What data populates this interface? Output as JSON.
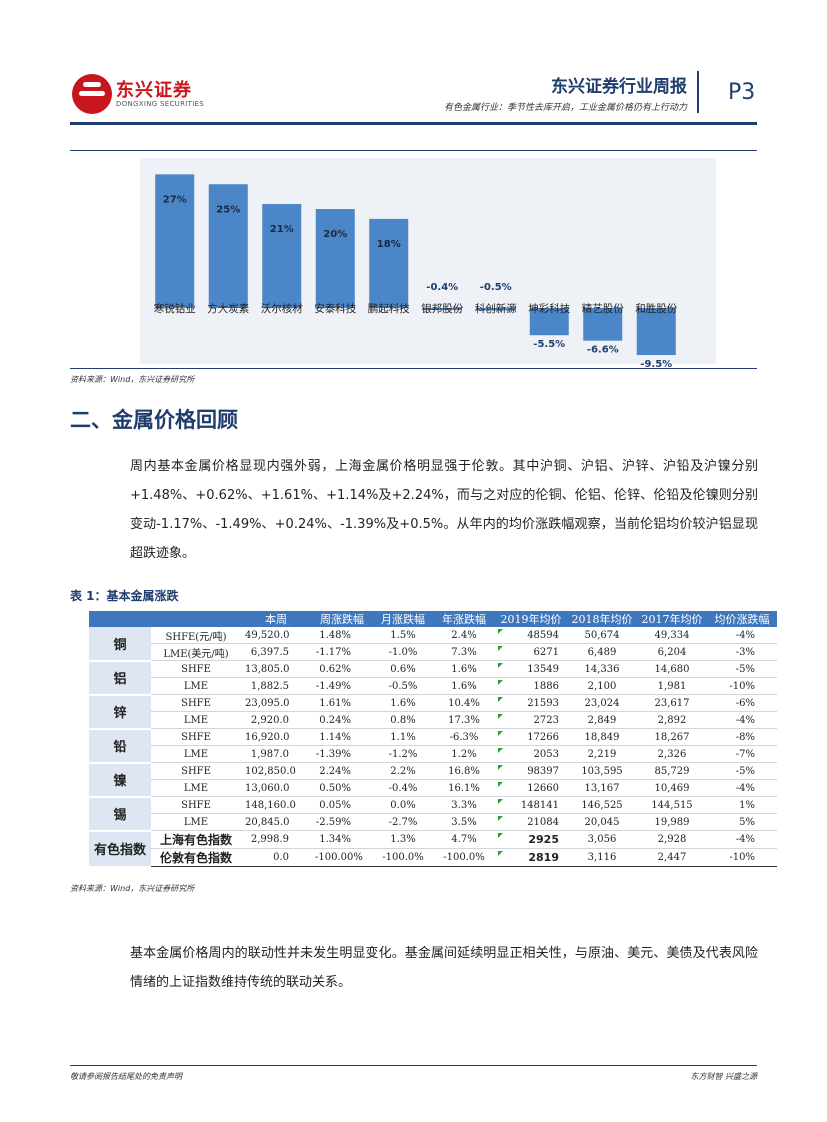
{
  "header": {
    "logo_cn": "东兴证券",
    "logo_en": "DONGXING SECURITIES",
    "title": "东兴证券行业周报",
    "subtitle": "有色金属行业：季节性去库开启，工业金属价格仍有上行动力",
    "page": "P3"
  },
  "chart_data": {
    "type": "bar",
    "categories": [
      "寒锐钴业",
      "方大炭素",
      "沃尔核材",
      "安泰科技",
      "鹏起科技",
      "银邦股份",
      "科创新源",
      "坤彩科技",
      "精艺股份",
      "和胜股份"
    ],
    "values": [
      27,
      25,
      21,
      20,
      18,
      -0.4,
      -0.5,
      -5.5,
      -6.6,
      -9.5
    ],
    "value_labels": [
      "27%",
      "25%",
      "21%",
      "20%",
      "18%",
      "-0.4%",
      "-0.5%",
      "-5.5%",
      "-6.6%",
      "-9.5%"
    ],
    "bar_color": "#4a86c8",
    "ylim": [
      -11,
      30
    ],
    "grid": false
  },
  "chart_source": "资料来源：Wind，东兴证券研究所",
  "section_title": "二、金属价格回顾",
  "paragraph1": "周内基本金属价格显现内强外弱，上海金属价格明显强于伦敦。其中沪铜、沪铝、沪锌、沪铅及沪镍分别+1.48%、+0.62%、+1.61%、+1.14%及+2.24%，而与之对应的伦铜、伦铝、伦锌、伦铅及伦镍则分别变动-1.17%、-1.49%、+0.24%、-1.39%及+0.5%。从年内的均价涨跌幅观察，当前伦铝均价较沪铝显现超跌迹象。",
  "table": {
    "title": "表 1：基本金属涨跌",
    "headers": [
      "",
      "",
      "本周",
      "周涨跌幅",
      "月涨跌幅",
      "年涨跌幅",
      "2019年均价",
      "2018年均价",
      "2017年均价",
      "均价涨跌幅"
    ],
    "groups": [
      {
        "name": "铜",
        "rows": [
          [
            "SHFE(元/吨)",
            "49,520.0",
            "1.48%",
            "1.5%",
            "2.4%",
            "48594",
            "50,674",
            "49,334",
            "-4%"
          ],
          [
            "LME(美元/吨)",
            "6,397.5",
            "-1.17%",
            "-1.0%",
            "7.3%",
            "6271",
            "6,489",
            "6,204",
            "-3%"
          ]
        ]
      },
      {
        "name": "铝",
        "rows": [
          [
            "SHFE",
            "13,805.0",
            "0.62%",
            "0.6%",
            "1.6%",
            "13549",
            "14,336",
            "14,680",
            "-5%"
          ],
          [
            "LME",
            "1,882.5",
            "-1.49%",
            "-0.5%",
            "1.6%",
            "1886",
            "2,100",
            "1,981",
            "-10%"
          ]
        ]
      },
      {
        "name": "锌",
        "rows": [
          [
            "SHFE",
            "23,095.0",
            "1.61%",
            "1.6%",
            "10.4%",
            "21593",
            "23,024",
            "23,617",
            "-6%"
          ],
          [
            "LME",
            "2,920.0",
            "0.24%",
            "0.8%",
            "17.3%",
            "2723",
            "2,849",
            "2,892",
            "-4%"
          ]
        ]
      },
      {
        "name": "铅",
        "rows": [
          [
            "SHFE",
            "16,920.0",
            "1.14%",
            "1.1%",
            "-6.3%",
            "17266",
            "18,849",
            "18,267",
            "-8%"
          ],
          [
            "LME",
            "1,987.0",
            "-1.39%",
            "-1.2%",
            "1.2%",
            "2053",
            "2,219",
            "2,326",
            "-7%"
          ]
        ]
      },
      {
        "name": "镍",
        "rows": [
          [
            "SHFE",
            "102,850.0",
            "2.24%",
            "2.2%",
            "16.8%",
            "98397",
            "103,595",
            "85,729",
            "-5%"
          ],
          [
            "LME",
            "13,060.0",
            "0.50%",
            "-0.4%",
            "16.1%",
            "12660",
            "13,167",
            "10,469",
            "-4%"
          ]
        ]
      },
      {
        "name": "锡",
        "rows": [
          [
            "SHFE",
            "148,160.0",
            "0.05%",
            "0.0%",
            "3.3%",
            "148141",
            "146,525",
            "144,515",
            "1%"
          ],
          [
            "LME",
            "20,845.0",
            "-2.59%",
            "-2.7%",
            "3.5%",
            "21084",
            "20,045",
            "19,989",
            "5%"
          ]
        ]
      },
      {
        "name": "有色指数",
        "rows": [
          [
            "上海有色指数",
            "2,998.9",
            "1.34%",
            "1.3%",
            "4.7%",
            "2925",
            "3,056",
            "2,928",
            "-4%"
          ],
          [
            "伦敦有色指数",
            "0.0",
            "-100.00%",
            "-100.0%",
            "-100.0%",
            "2819",
            "3,116",
            "2,447",
            "-10%"
          ]
        ]
      }
    ]
  },
  "table_source": "资料来源：Wind，东兴证券研究所",
  "paragraph2": "基本金属价格周内的联动性并未发生明显变化。基金属间延续明显正相关性，与原油、美元、美债及代表风险情绪的上证指数维持传统的联动关系。",
  "footer": {
    "left": "敬请参阅报告结尾处的免责声明",
    "right": "东方财智 兴盛之源"
  }
}
